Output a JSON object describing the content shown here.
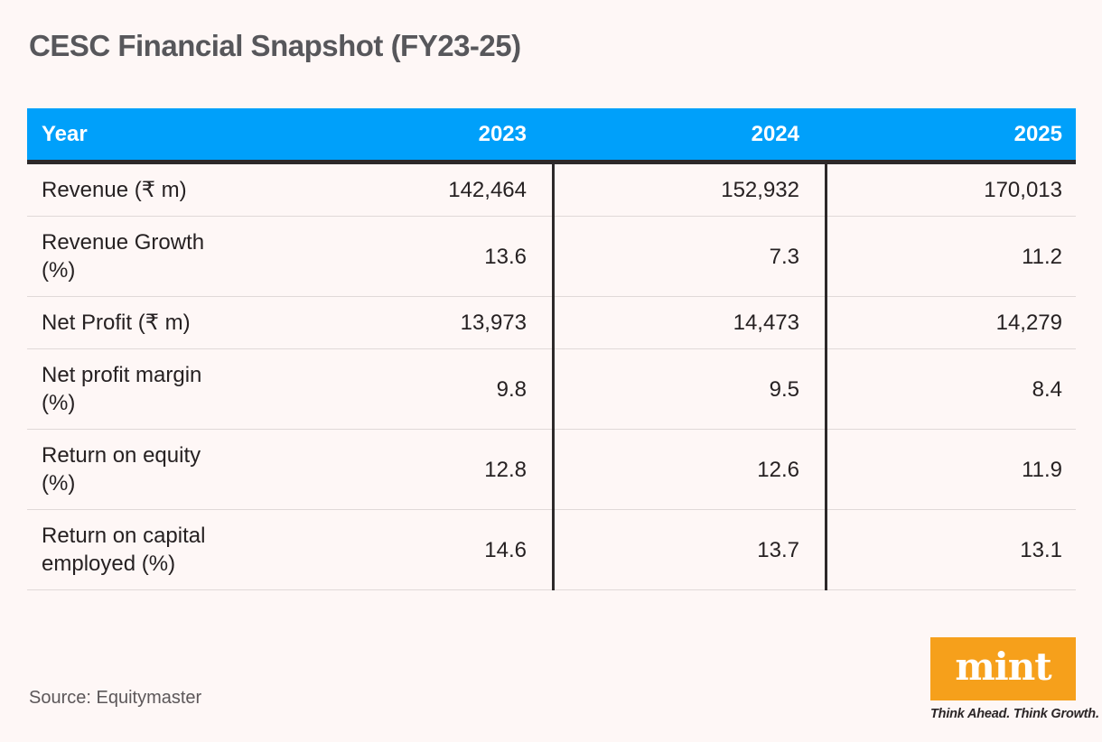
{
  "page": {
    "title": "CESC Financial Snapshot (FY23-25)"
  },
  "table": {
    "header": {
      "label": "Year",
      "years": [
        "2023",
        "2024",
        "2025"
      ]
    },
    "rows": [
      {
        "label": "Revenue (₹ m)",
        "values": [
          "142,464",
          "152,932",
          "170,013"
        ]
      },
      {
        "label": "Revenue Growth\n(%)",
        "values": [
          "13.6",
          "7.3",
          "11.2"
        ]
      },
      {
        "label": "Net Profit (₹ m)",
        "values": [
          "13,973",
          "14,473",
          "14,279"
        ]
      },
      {
        "label": "Net profit margin\n(%)",
        "values": [
          "9.8",
          "9.5",
          "8.4"
        ]
      },
      {
        "label": "Return on equity\n(%)",
        "values": [
          "12.8",
          "12.6",
          "11.9"
        ]
      },
      {
        "label": "Return on capital\nemployed (%)",
        "values": [
          "14.6",
          "13.7",
          "13.1"
        ]
      }
    ]
  },
  "footer": {
    "source": "Source: Equitymaster"
  },
  "logo": {
    "wordmark": "mint",
    "tagline": "Think Ahead. Think Growth."
  },
  "colors": {
    "page_bg": "#FEF7F6",
    "header_blue": "#00A0FA",
    "brand_orange": "#F6A01B",
    "border_dark": "#2D292A",
    "separator": "#E0D9D8",
    "title_gray": "#57575B",
    "body_text": "#262122",
    "source_gray": "#5C5759",
    "tagline_dark": "#2B2627"
  },
  "chart_data": {
    "type": "table",
    "title": "CESC Financial Snapshot (FY23-25)",
    "columns": [
      "Year",
      "2023",
      "2024",
      "2025"
    ],
    "rows": [
      [
        "Revenue (₹ m)",
        142464,
        152932,
        170013
      ],
      [
        "Revenue Growth (%)",
        13.6,
        7.3,
        11.2
      ],
      [
        "Net Profit (₹ m)",
        13973,
        14473,
        14279
      ],
      [
        "Net profit margin (%)",
        9.8,
        9.5,
        8.4
      ],
      [
        "Return on equity (%)",
        12.8,
        12.6,
        11.9
      ],
      [
        "Return on capital employed (%)",
        14.6,
        13.7,
        13.1
      ]
    ],
    "source": "Equitymaster",
    "legend_position": "none",
    "grid": "horizontal-separators with vertical dividers between year columns"
  }
}
